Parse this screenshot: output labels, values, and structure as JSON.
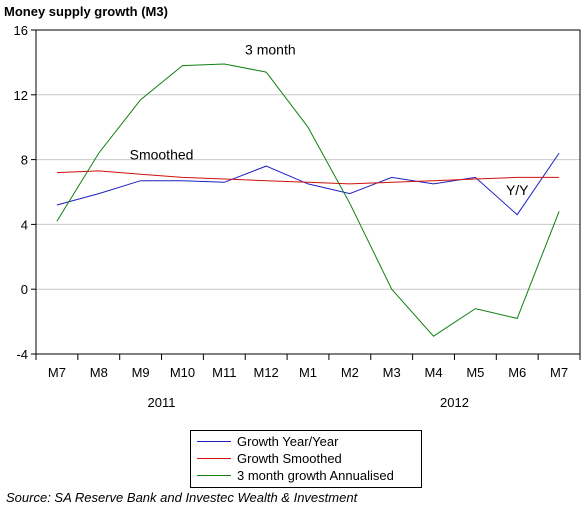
{
  "title": "Money supply growth (M3)",
  "source": "Source: SA Reserve Bank and Investec Wealth & Investment",
  "colors": {
    "yoy": "#1f1fbf",
    "smoothed": "#d01010",
    "annualised": "#108010",
    "axis": "#000000",
    "grid": "#c8c8c8"
  },
  "chart_data": {
    "type": "line",
    "categories": [
      "M7",
      "M8",
      "M9",
      "M10",
      "M11",
      "M12",
      "M1",
      "M2",
      "M3",
      "M4",
      "M5",
      "M6",
      "M7"
    ],
    "year_labels": [
      {
        "label": "2011",
        "center_index": 2.5
      },
      {
        "label": "2012",
        "center_index": 9.5
      }
    ],
    "ylim": [
      -4,
      16
    ],
    "yticks": [
      -4,
      0,
      4,
      8,
      12,
      16
    ],
    "grid": "horizontal",
    "legend_position": "bottom",
    "series": [
      {
        "name": "Growth Year/Year",
        "key": "yoy",
        "values": [
          5.2,
          5.9,
          6.7,
          6.7,
          6.6,
          7.6,
          6.5,
          5.9,
          6.9,
          6.5,
          6.9,
          4.6,
          8.4
        ]
      },
      {
        "name": "Growth Smoothed",
        "key": "smoothed",
        "values": [
          7.2,
          7.3,
          7.1,
          6.9,
          6.8,
          6.7,
          6.6,
          6.5,
          6.6,
          6.7,
          6.8,
          6.9,
          6.9
        ]
      },
      {
        "name": "3 month growth Annualised",
        "key": "annualised",
        "values": [
          4.2,
          8.4,
          11.7,
          13.8,
          13.9,
          13.4,
          10.0,
          5.3,
          0.0,
          -2.9,
          -1.2,
          -1.8,
          4.8
        ]
      }
    ],
    "annotations": [
      {
        "text": "3  month",
        "x_index": 5.1,
        "y": 14.5
      },
      {
        "text": "Smoothed",
        "x_index": 2.5,
        "y": 8.0
      },
      {
        "text": "Y/Y",
        "x_index": 11.0,
        "y": 5.8
      }
    ]
  }
}
